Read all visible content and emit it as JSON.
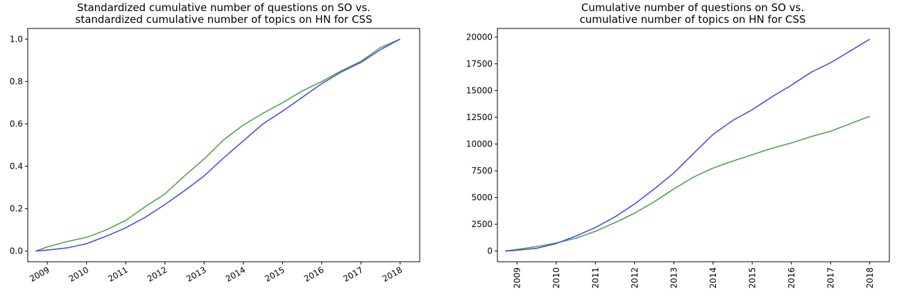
{
  "charts": [
    {
      "title_line1": "Standardized cumulative number of questions on SO vs.",
      "title_line2": "standardized cumulative number of topics on HN for CSS",
      "x_ticks": [
        "2009",
        "2010",
        "2011",
        "2012",
        "2013",
        "2014",
        "2015",
        "2016",
        "2017",
        "2018"
      ],
      "y_ticks": [
        "0.0",
        "0.2",
        "0.4",
        "0.6",
        "0.8",
        "1.0"
      ]
    },
    {
      "title_line1": "Cumulative number of questions on SO vs.",
      "title_line2": "cumulative number of topics on HN for CSS",
      "x_ticks": [
        "2009",
        "2010",
        "2011",
        "2012",
        "2013",
        "2014",
        "2015",
        "2016",
        "2017",
        "2018"
      ],
      "y_ticks": [
        "0",
        "2500",
        "5000",
        "7500",
        "10000",
        "12500",
        "15000",
        "17500",
        "20000"
      ]
    }
  ],
  "colors": {
    "so": "#4a4aee",
    "hn": "#4ca24c"
  },
  "chart_data": [
    {
      "type": "line",
      "x": [
        2008.7,
        2009.0,
        2009.5,
        2010.0,
        2010.5,
        2011.0,
        2011.5,
        2012.0,
        2012.5,
        2013.0,
        2013.5,
        2014.0,
        2014.5,
        2015.0,
        2015.5,
        2016.0,
        2016.5,
        2017.0,
        2017.5,
        2018.0
      ],
      "xlim": [
        2008.5,
        2018.5
      ],
      "ylim": [
        -0.05,
        1.05
      ],
      "series": [
        {
          "key": "so",
          "values": [
            0,
            0.005,
            0.015,
            0.035,
            0.07,
            0.11,
            0.16,
            0.22,
            0.285,
            0.355,
            0.44,
            0.52,
            0.6,
            0.66,
            0.725,
            0.79,
            0.845,
            0.89,
            0.95,
            1.0
          ]
        },
        {
          "key": "hn",
          "values": [
            0,
            0.02,
            0.045,
            0.065,
            0.1,
            0.145,
            0.21,
            0.27,
            0.355,
            0.435,
            0.525,
            0.595,
            0.65,
            0.7,
            0.755,
            0.8,
            0.85,
            0.895,
            0.96,
            1.0
          ]
        }
      ]
    },
    {
      "type": "line",
      "x": [
        2008.7,
        2009.0,
        2009.5,
        2010.0,
        2010.5,
        2011.0,
        2011.5,
        2012.0,
        2012.5,
        2013.0,
        2013.5,
        2014.0,
        2014.5,
        2015.0,
        2015.5,
        2016.0,
        2016.5,
        2017.0,
        2017.5,
        2018.0
      ],
      "xlim": [
        2008.5,
        2018.5
      ],
      "ylim": [
        -1000,
        20800
      ],
      "series": [
        {
          "key": "so",
          "values": [
            0,
            80,
            250,
            700,
            1400,
            2200,
            3200,
            4400,
            5800,
            7300,
            9100,
            10900,
            12200,
            13200,
            14400,
            15500,
            16700,
            17600,
            18700,
            19800
          ]
        },
        {
          "key": "hn",
          "values": [
            0,
            150,
            420,
            750,
            1200,
            1850,
            2650,
            3550,
            4600,
            5800,
            6900,
            7750,
            8400,
            9000,
            9600,
            10100,
            10700,
            11200,
            11900,
            12600
          ]
        }
      ]
    }
  ]
}
